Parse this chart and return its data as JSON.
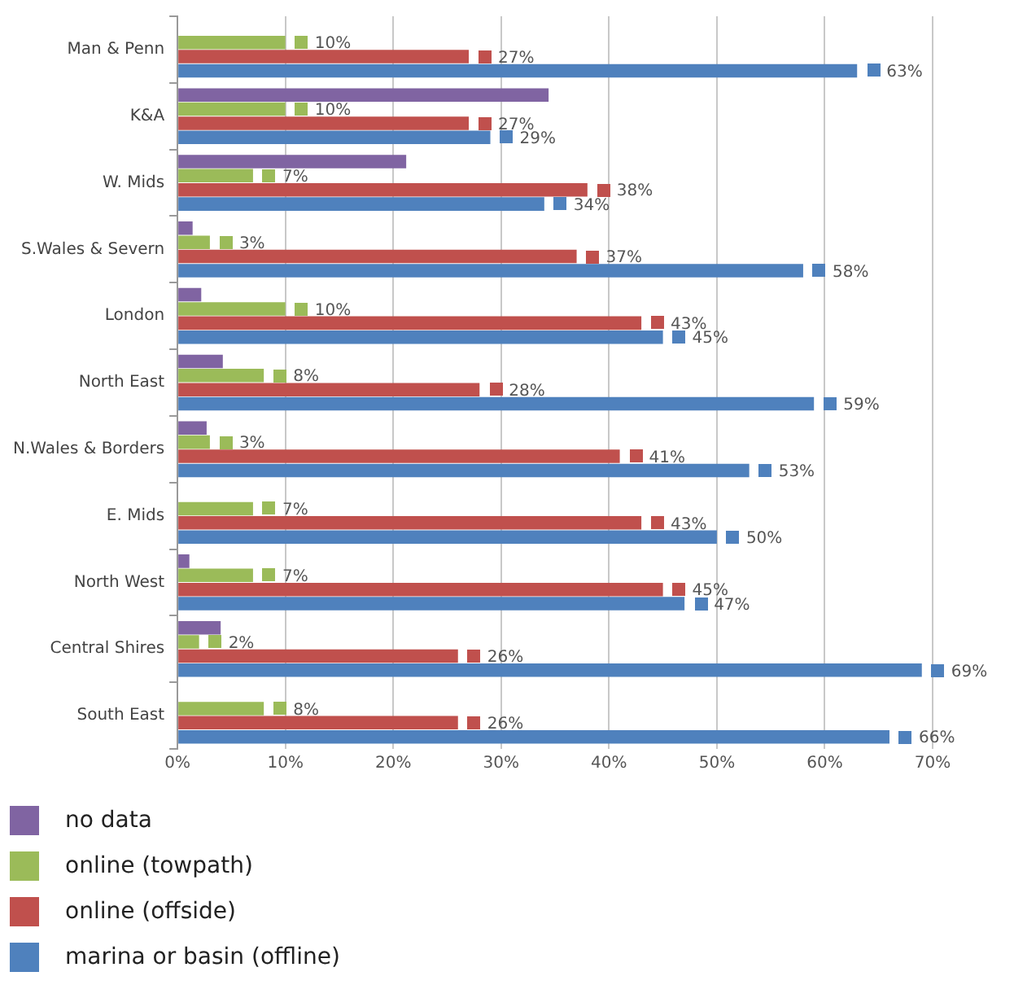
{
  "chart_data": {
    "type": "bar",
    "orientation": "horizontal",
    "categories": [
      "Man & Penn",
      "K&A",
      "W. Mids",
      "S.Wales & Severn",
      "London",
      "North East",
      "N.Wales & Borders",
      "E. Mids",
      "North West",
      "Central Shires",
      "South East"
    ],
    "series": [
      {
        "name": "no data",
        "color": "#8064a2",
        "values": [
          null,
          34.4,
          21.2,
          1.4,
          2.2,
          4.2,
          2.7,
          null,
          1.1,
          4.0,
          null
        ]
      },
      {
        "name": "online (towpath)",
        "color": "#9bbb59",
        "values": [
          10,
          10,
          7,
          3,
          10,
          8,
          3,
          7,
          7,
          2,
          8
        ],
        "value_labels": [
          "10%",
          "10%",
          "7%",
          "3%",
          "10%",
          "8%",
          "3%",
          "7%",
          "7%",
          "2%",
          "8%"
        ]
      },
      {
        "name": "online (offside)",
        "color": "#c0504d",
        "values": [
          27,
          27,
          38,
          37,
          43,
          28,
          41,
          43,
          45,
          26,
          26
        ],
        "value_labels": [
          "27%",
          "27%",
          "38%",
          "37%",
          "43%",
          "28%",
          "41%",
          "43%",
          "45%",
          "26%",
          "26%"
        ]
      },
      {
        "name": "marina or basin (offline)",
        "color": "#4f81bd",
        "values": [
          63,
          29,
          34,
          58,
          45,
          59,
          53,
          50,
          47,
          69,
          66
        ],
        "value_labels": [
          "63%",
          "29%",
          "34%",
          "58%",
          "45%",
          "59%",
          "53%",
          "50%",
          "47%",
          "69%",
          "66%"
        ]
      }
    ],
    "xlim": [
      0,
      70
    ],
    "xticks": [
      {
        "value": 0,
        "label": "0%"
      },
      {
        "value": 10,
        "label": "10%"
      },
      {
        "value": 20,
        "label": "20%"
      },
      {
        "value": 30,
        "label": "30%"
      },
      {
        "value": 40,
        "label": "40%"
      },
      {
        "value": 50,
        "label": "50%"
      },
      {
        "value": 60,
        "label": "60%"
      },
      {
        "value": 70,
        "label": "70%"
      }
    ],
    "grid": "x",
    "legend": "bottom left"
  }
}
